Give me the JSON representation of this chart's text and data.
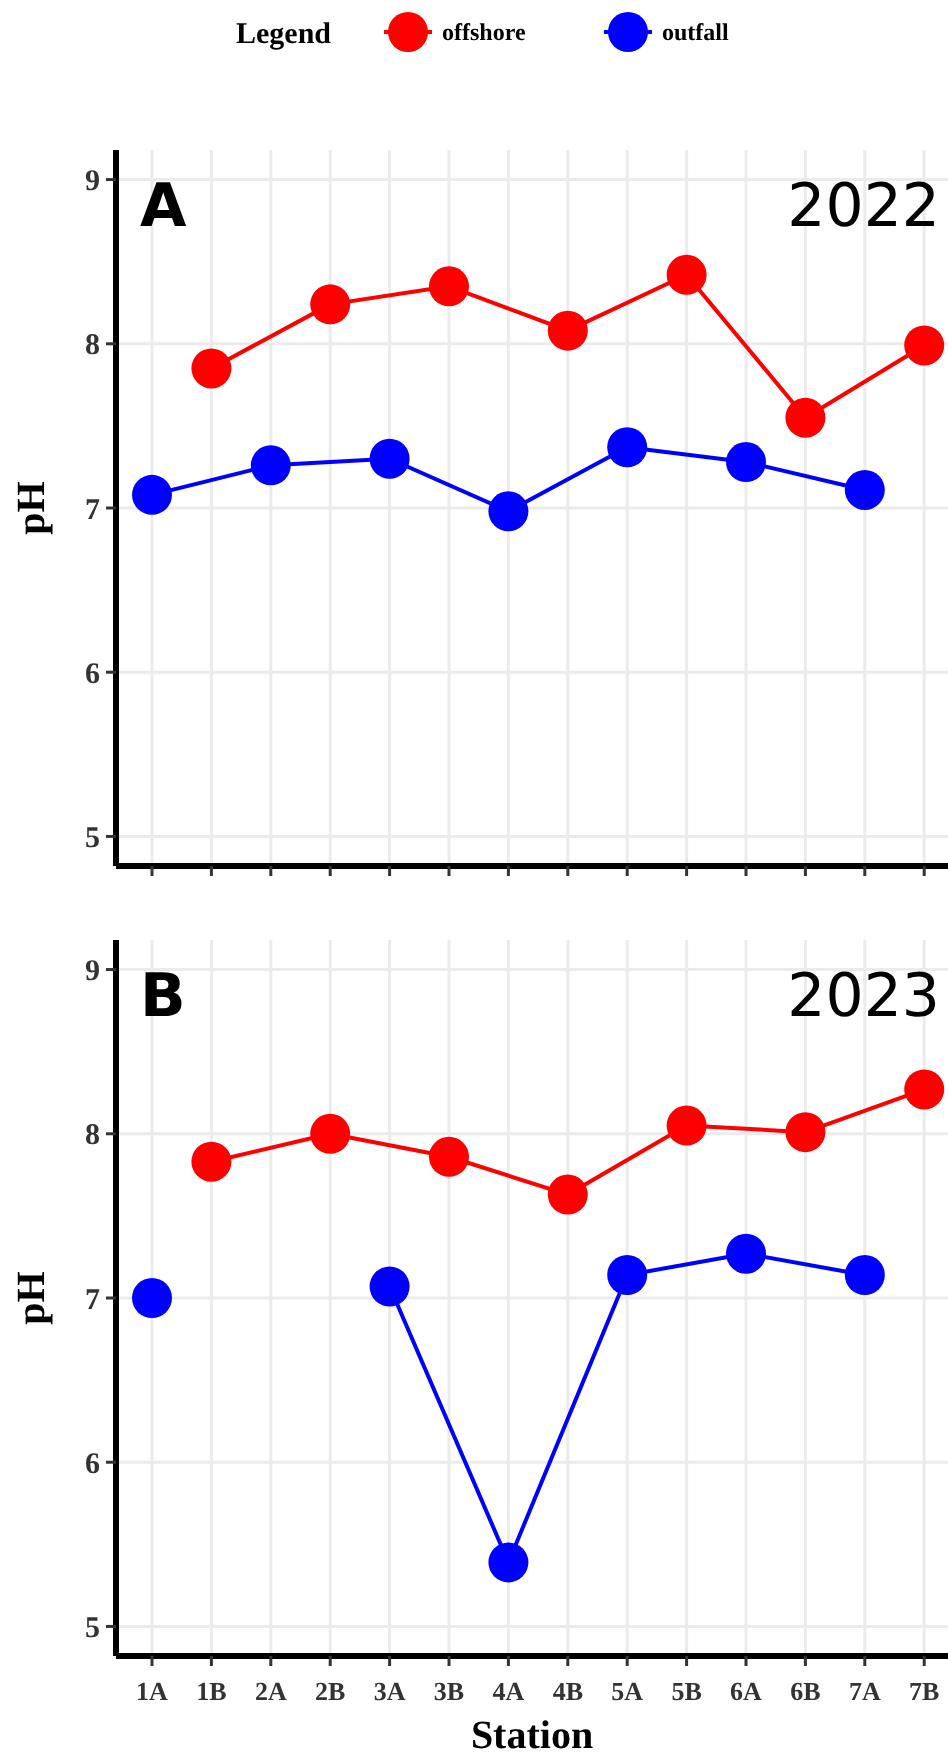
{
  "chart_data": [
    {
      "type": "line",
      "title": "A",
      "subtitle": "2022",
      "ylabel": "pH",
      "legend_title": "Legend",
      "legend": "top",
      "grid": true,
      "marker": "circle",
      "tick_labels": "y",
      "categories": [
        "1A",
        "1B",
        "2A",
        "2B",
        "3A",
        "3B",
        "4A",
        "4B",
        "5A",
        "5B",
        "6A",
        "6B",
        "7A",
        "7B"
      ],
      "ylim": [
        4.82,
        9.18
      ],
      "yticks": [
        5,
        6,
        7,
        8,
        9
      ],
      "series": [
        {
          "name": "offshore",
          "color": "#ff0000",
          "x": [
            "1B",
            "2B",
            "3B",
            "4B",
            "5B",
            "6B",
            "7B"
          ],
          "values": [
            7.85,
            8.24,
            8.35,
            8.08,
            8.42,
            7.55,
            7.99
          ]
        },
        {
          "name": "outfall",
          "color": "#0000ff",
          "x": [
            "1A",
            "2A",
            "3A",
            "4A",
            "5A",
            "6A",
            "7A"
          ],
          "values": [
            7.08,
            7.26,
            7.3,
            6.98,
            7.37,
            7.28,
            7.11
          ]
        }
      ]
    },
    {
      "type": "line",
      "title": "B",
      "subtitle": "2023",
      "ylabel": "pH",
      "xlabel": "Station",
      "grid": true,
      "marker": "circle",
      "categories": [
        "1A",
        "1B",
        "2A",
        "2B",
        "3A",
        "3B",
        "4A",
        "4B",
        "5A",
        "5B",
        "6A",
        "6B",
        "7A",
        "7B"
      ],
      "ylim": [
        4.82,
        9.18
      ],
      "yticks": [
        5,
        6,
        7,
        8,
        9
      ],
      "series": [
        {
          "color": "#ff0000",
          "x": [
            "1B",
            "2B",
            "3B",
            "4B",
            "5B",
            "6B",
            "7B"
          ],
          "values": [
            7.83,
            8.0,
            7.86,
            7.63,
            8.05,
            8.01,
            8.27
          ]
        },
        {
          "color": "#0000ff",
          "x": [
            "1A",
            "2A",
            "3A",
            "4A",
            "5A",
            "6A",
            "7A"
          ],
          "values": [
            7.0,
            null,
            7.07,
            5.39,
            7.14,
            7.27,
            7.14
          ]
        }
      ]
    }
  ]
}
